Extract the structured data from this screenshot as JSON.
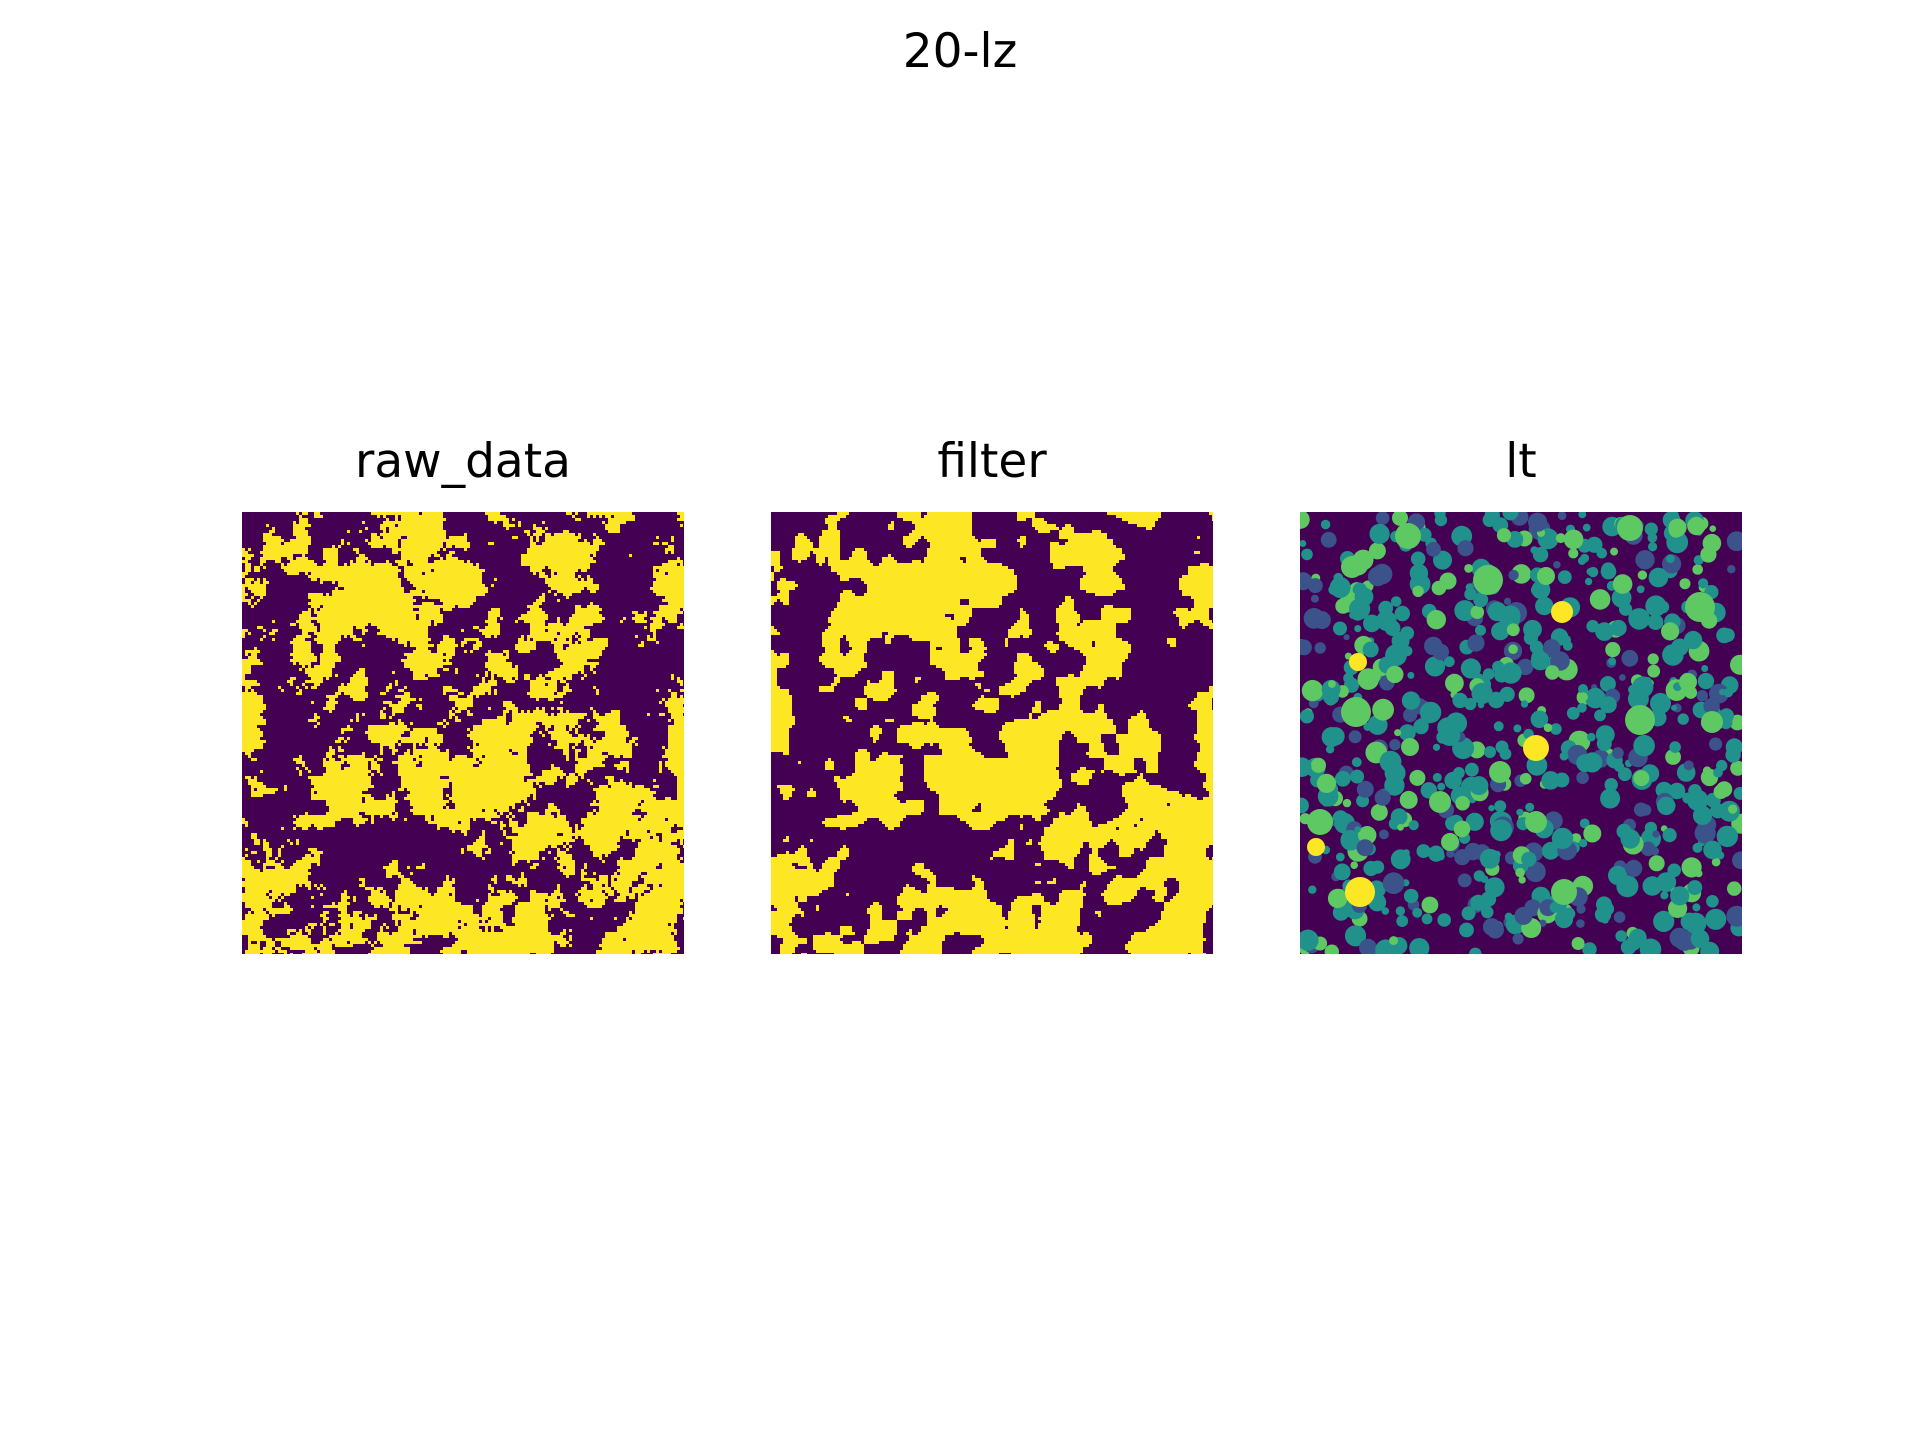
{
  "figure": {
    "title": "20-lz"
  },
  "panels": [
    {
      "title": "raw_data",
      "style": "binary-noisy"
    },
    {
      "title": "filter",
      "style": "binary-smooth"
    },
    {
      "title": "lt",
      "style": "labels"
    }
  ],
  "colors": {
    "viridis_low": "#440154",
    "viridis_mid_low": "#3b528b",
    "viridis_mid": "#21918c",
    "viridis_mid_high": "#5ec962",
    "viridis_high": "#fde725"
  }
}
